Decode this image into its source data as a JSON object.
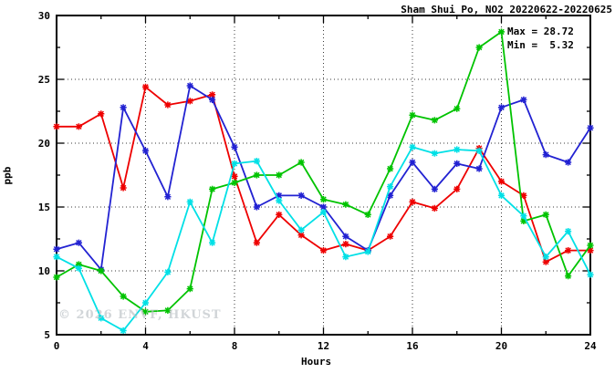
{
  "title": "Sham Shui Po, NO2 20220622-20220625",
  "legend": {
    "max_label": "Max = 28.72",
    "min_label": "Min =  5.32"
  },
  "watermark": "© 2026 ENVF, HKUST",
  "colors": {
    "axis": "#000000",
    "grid": "#3a3a3a",
    "background": "#ffffff",
    "watermark_gray": "#b9bfc4"
  },
  "chart_data": {
    "type": "line",
    "title": "Sham Shui Po, NO2 20220622-20220625",
    "xlabel": "Hours",
    "ylabel": "ppb",
    "xlim": [
      0,
      24
    ],
    "ylim": [
      5,
      30
    ],
    "x_ticks": [
      0,
      4,
      8,
      12,
      16,
      20,
      24
    ],
    "x_minor_ticks": [
      2,
      6,
      10,
      14,
      18,
      22
    ],
    "y_ticks": [
      5,
      10,
      15,
      20,
      25,
      30
    ],
    "y_minor_ticks": [
      7.5,
      12.5,
      17.5,
      22.5,
      27.5
    ],
    "grid_x": [
      4,
      8,
      12,
      16,
      20
    ],
    "grid_y": [
      10,
      15,
      20,
      25
    ],
    "grid_on": true,
    "legend_position": "top-right-inside",
    "annotations": {
      "max": 28.72,
      "min": 5.32
    },
    "x": [
      0,
      1,
      2,
      3,
      4,
      5,
      6,
      7,
      8,
      9,
      10,
      11,
      12,
      13,
      14,
      15,
      16,
      17,
      18,
      19,
      20,
      21,
      22,
      23,
      24
    ],
    "series": [
      {
        "name": "red",
        "color": "#ee0000",
        "values": [
          21.3,
          21.3,
          22.3,
          16.5,
          24.4,
          23.0,
          23.3,
          23.8,
          17.4,
          12.2,
          14.4,
          12.8,
          11.6,
          12.1,
          11.6,
          12.7,
          15.4,
          14.9,
          16.4,
          19.6,
          17.0,
          15.9,
          10.7,
          11.6,
          11.6
        ]
      },
      {
        "name": "blue",
        "color": "#2222d2",
        "values": [
          11.7,
          12.2,
          10.1,
          22.8,
          19.4,
          15.8,
          24.5,
          23.4,
          19.7,
          15.0,
          15.9,
          15.9,
          15.0,
          12.7,
          11.6,
          15.9,
          18.5,
          16.4,
          18.4,
          18.0,
          22.8,
          23.4,
          19.1,
          18.5,
          21.2
        ]
      },
      {
        "name": "green",
        "color": "#00c300",
        "values": [
          9.5,
          10.5,
          10.0,
          8.0,
          6.8,
          6.9,
          8.6,
          16.4,
          16.9,
          17.5,
          17.5,
          18.5,
          15.6,
          15.2,
          14.4,
          18.0,
          22.2,
          21.8,
          22.7,
          27.5,
          28.72,
          13.9,
          14.4,
          9.6,
          12.0
        ]
      },
      {
        "name": "cyan",
        "color": "#00e0e6",
        "values": [
          11.1,
          10.2,
          6.3,
          5.32,
          7.5,
          9.9,
          15.4,
          12.2,
          18.4,
          18.6,
          15.5,
          13.2,
          14.6,
          11.1,
          11.5,
          16.6,
          19.7,
          19.2,
          19.5,
          19.4,
          15.9,
          14.3,
          11.1,
          13.1,
          9.7
        ]
      }
    ]
  }
}
